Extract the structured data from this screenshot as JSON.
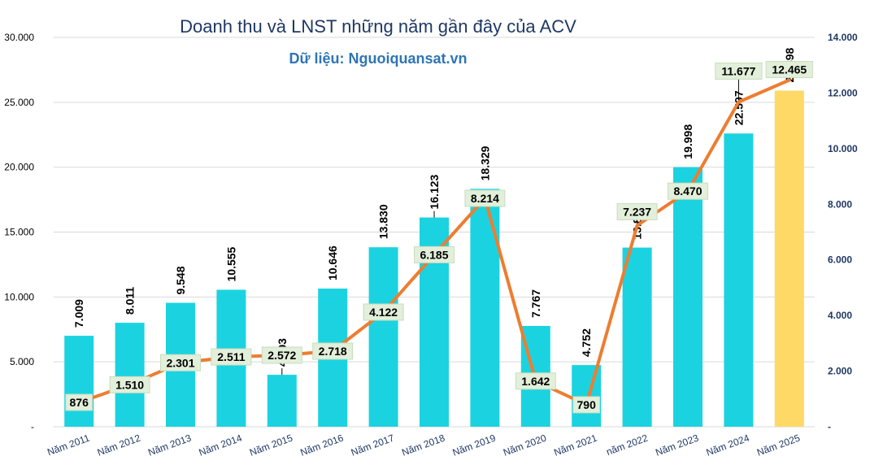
{
  "chart_data": {
    "type": "bar+line",
    "title": "Doanh thu và LNST những năm gần đây của ACV",
    "subtitle": "Dữ liệu: Nguoiquansat.vn",
    "categories": [
      "Năm 2011",
      "Năm 2012",
      "Năm 2013",
      "Năm 2014",
      "Năm 2015",
      "Năm 2016",
      "Năm 2017",
      "Năm 2018",
      "Năm 2019",
      "Năm 2020",
      "Năm 2021",
      "năm 2022",
      "Năm 2023",
      "Năm 2024",
      "Năm 2025"
    ],
    "series": [
      {
        "type": "bar",
        "axis": "left",
        "values": [
          7009,
          8011,
          9548,
          10555,
          4003,
          10646,
          13830,
          16123,
          18329,
          7767,
          4752,
          13805,
          19998,
          22597,
          25898
        ],
        "labels": [
          "7.009",
          "8.011",
          "9.548",
          "10.555",
          "4.003",
          "10.646",
          "13.830",
          "16.123",
          "18.329",
          "7.767",
          "4.752",
          "13.805",
          "19.998",
          "22.597",
          "25.898"
        ],
        "color": "#1BD3E0",
        "highlight_color": "#FFD966",
        "highlight_index": 14
      },
      {
        "type": "line",
        "axis": "right",
        "values": [
          876,
          1510,
          2301,
          2511,
          2572,
          2718,
          4122,
          6185,
          8214,
          1642,
          790,
          7237,
          8470,
          11677,
          12465
        ],
        "labels": [
          "876",
          "1.510",
          "2.301",
          "2.511",
          "2.572",
          "2.718",
          "4.122",
          "6.185",
          "8.214",
          "1.642",
          "790",
          "7.237",
          "8.470",
          "11.677",
          "12.465"
        ],
        "color": "#ED7D31",
        "label_bg": "#E2EFDA"
      }
    ],
    "y_left": {
      "min": 0,
      "max": 30000,
      "step": 5000,
      "tick_labels": [
        "-",
        "5.000",
        "10.000",
        "15.000",
        "20.000",
        "25.000",
        "30.000"
      ]
    },
    "y_right": {
      "min": 0,
      "max": 14000,
      "step": 2000,
      "tick_labels": [
        "-",
        "2.000",
        "4.000",
        "6.000",
        "8.000",
        "10.000",
        "12.000",
        "14.000"
      ]
    },
    "grid": true,
    "colors": {
      "grid": "#D9D9D9",
      "axis_text": "#000000",
      "right_axis_text": "#1F3864",
      "category_text": "#1F3864"
    }
  }
}
